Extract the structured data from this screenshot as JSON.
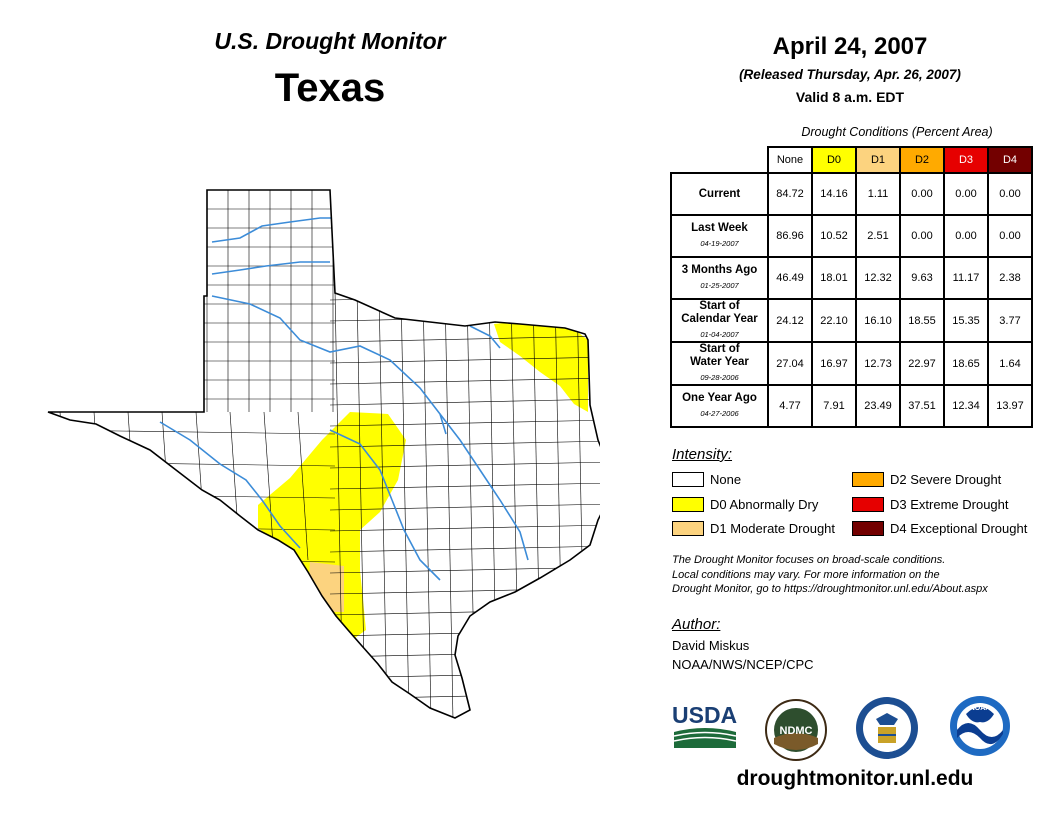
{
  "header": {
    "monitor_title": "U.S. Drought Monitor",
    "state": "Texas",
    "date": "April 24, 2007",
    "released": "(Released Thursday, Apr. 26, 2007)",
    "valid": "Valid 8 a.m. EDT"
  },
  "table": {
    "caption": "Drought Conditions (Percent Area)",
    "columns": [
      {
        "label": "None",
        "color": "#ffffff",
        "text_color": "#000000"
      },
      {
        "label": "D0",
        "color": "#ffff00",
        "text_color": "#000000"
      },
      {
        "label": "D1",
        "color": "#fcd37f",
        "text_color": "#000000"
      },
      {
        "label": "D2",
        "color": "#ffaa00",
        "text_color": "#000000"
      },
      {
        "label": "D3",
        "color": "#e60000",
        "text_color": "#ffffff"
      },
      {
        "label": "D4",
        "color": "#730000",
        "text_color": "#ffffff"
      }
    ],
    "rows": [
      {
        "label": "Current",
        "label2": "",
        "date": "",
        "values": [
          "84.72",
          "14.16",
          "1.11",
          "0.00",
          "0.00",
          "0.00"
        ]
      },
      {
        "label": "Last Week",
        "label2": "",
        "date": "04-19-2007",
        "values": [
          "86.96",
          "10.52",
          "2.51",
          "0.00",
          "0.00",
          "0.00"
        ]
      },
      {
        "label": "3 Months Ago",
        "label2": "",
        "date": "01-25-2007",
        "values": [
          "46.49",
          "18.01",
          "12.32",
          "9.63",
          "11.17",
          "2.38"
        ]
      },
      {
        "label": "Start of",
        "label2": "Calendar Year",
        "date": "01-04-2007",
        "values": [
          "24.12",
          "22.10",
          "16.10",
          "18.55",
          "15.35",
          "3.77"
        ]
      },
      {
        "label": "Start of",
        "label2": "Water Year",
        "date": "09-28-2006",
        "values": [
          "27.04",
          "16.97",
          "12.73",
          "22.97",
          "18.65",
          "1.64"
        ]
      },
      {
        "label": "One Year Ago",
        "label2": "",
        "date": "04-27-2006",
        "values": [
          "4.77",
          "7.91",
          "23.49",
          "37.51",
          "12.34",
          "13.97"
        ]
      }
    ]
  },
  "legend": {
    "title": "Intensity:",
    "items": [
      {
        "label": "None",
        "color": "#ffffff"
      },
      {
        "label": "D0 Abnormally Dry",
        "color": "#ffff00"
      },
      {
        "label": "D1 Moderate Drought",
        "color": "#fcd37f"
      },
      {
        "label": "D2 Severe Drought",
        "color": "#ffaa00"
      },
      {
        "label": "D3 Extreme Drought",
        "color": "#e60000"
      },
      {
        "label": "D4 Exceptional Drought",
        "color": "#730000"
      }
    ]
  },
  "note": {
    "line1": "The Drought Monitor focuses on broad-scale conditions.",
    "line2": "Local conditions may vary. For more information on the",
    "line3": "Drought Monitor, go to https://droughtmonitor.unl.edu/About.aspx"
  },
  "author": {
    "label": "Author:",
    "name": "David Miskus",
    "org": "NOAA/NWS/NCEP/CPC"
  },
  "logos": {
    "usda": "USDA",
    "ndmc": "NDMC",
    "noaa": "NOAA"
  },
  "website": "droughtmonitor.unl.edu",
  "map_colors": {
    "d0": "#ffff00",
    "d1": "#fcd37f",
    "river": "#3c8cd8",
    "border": "#000000"
  }
}
